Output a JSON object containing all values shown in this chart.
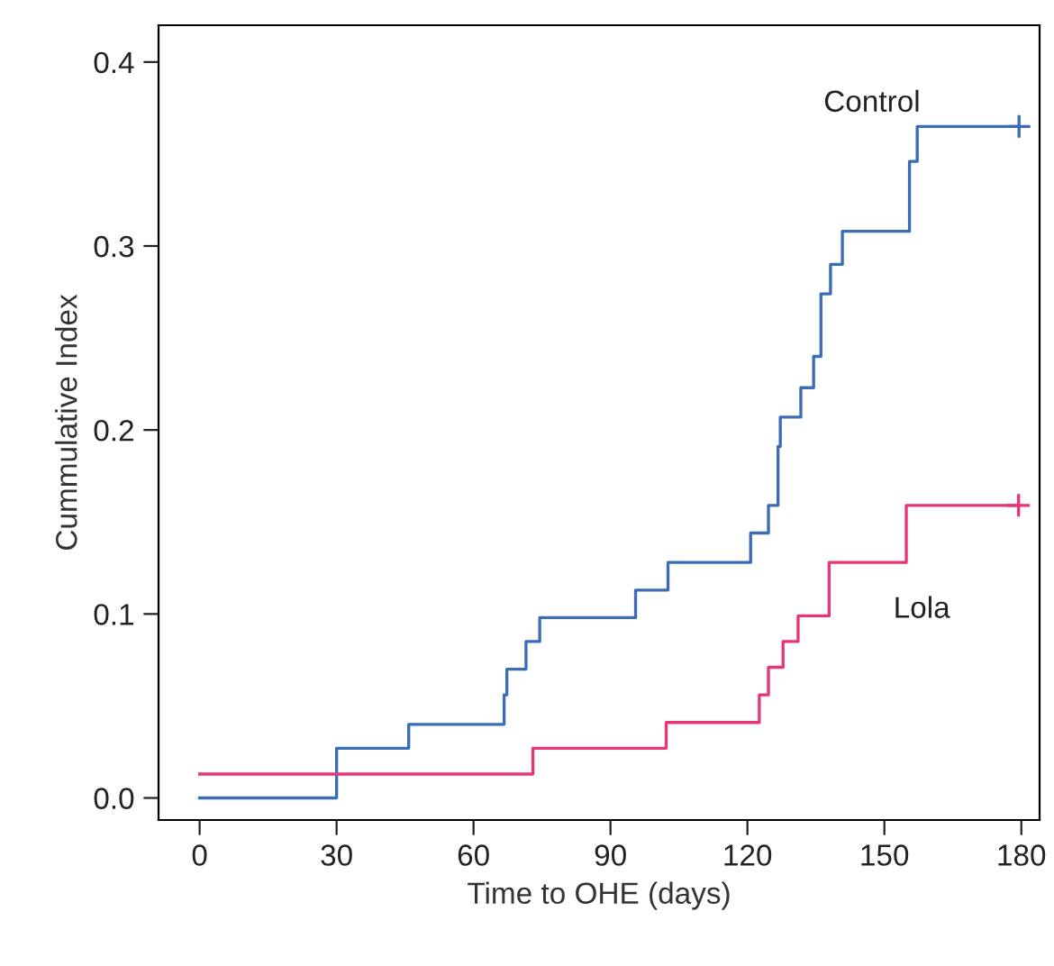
{
  "chart_data": {
    "type": "step",
    "xlabel": "Time to OHE (days)",
    "ylabel": "Cummulative Index",
    "xlim": [
      -9,
      184
    ],
    "ylim": [
      -0.012,
      0.42
    ],
    "xticks": [
      0,
      30,
      60,
      90,
      120,
      150,
      180
    ],
    "yticks": [
      {
        "value": 0,
        "label": "0.0"
      },
      0.1,
      0.2,
      0.3,
      0.4
    ],
    "grid": false,
    "legend": false,
    "series": [
      {
        "name": "Control",
        "color": "#3a6db5",
        "x": [
          0,
          30,
          45.8,
          66.7,
          67.3,
          71.5,
          74.5,
          95.5,
          102.6,
          120.7,
          124.6,
          126.7,
          127.2,
          131.7,
          134.5,
          136.1,
          138.2,
          140.8,
          155.5,
          157.2,
          179.5
        ],
        "values": [
          0,
          0.027,
          0.04,
          0.056,
          0.07,
          0.085,
          0.098,
          0.113,
          0.128,
          0.144,
          0.159,
          0.191,
          0.207,
          0.223,
          0.24,
          0.274,
          0.29,
          0.308,
          0.346,
          0.365,
          0.365
        ]
      },
      {
        "name": "Lola",
        "color": "#e8357a",
        "x": [
          0,
          73,
          102.2,
          122.6,
          124.6,
          127.8,
          131.1,
          137.9,
          154.8,
          179.4
        ],
        "values": [
          0.013,
          0.027,
          0.041,
          0.056,
          0.071,
          0.085,
          0.099,
          0.128,
          0.159,
          0.159
        ]
      },
      {
        "type": "scatter",
        "marker": "cross",
        "color": "#3a6db5",
        "x": [
          179.5
        ],
        "values": [
          0.365
        ]
      },
      {
        "type": "scatter",
        "marker": "cross",
        "color": "#e8357a",
        "x": [
          179.4
        ],
        "values": [
          0.159
        ]
      }
    ]
  }
}
